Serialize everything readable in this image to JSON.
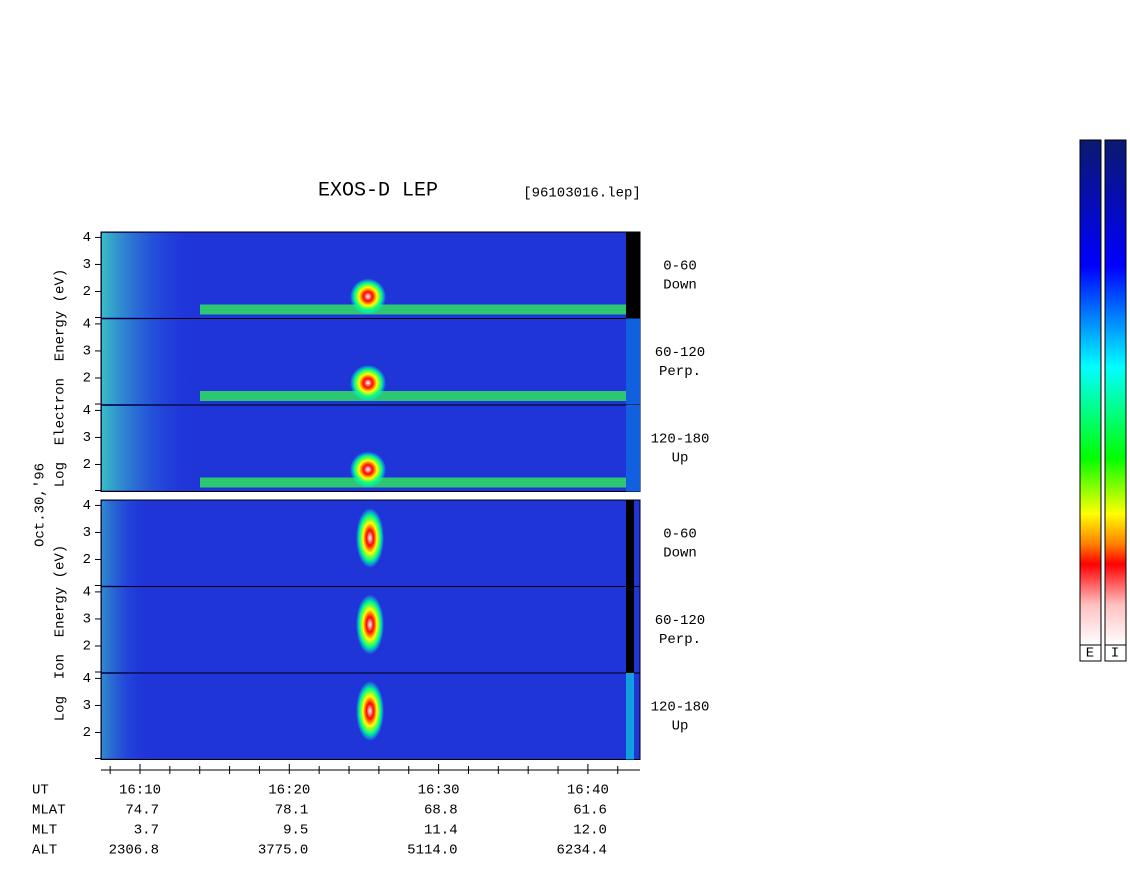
{
  "title": "EXOS-D LEP",
  "file": "[96103016.lep]",
  "date": "Oct.30,'96",
  "groups": [
    {
      "ylabel": "Log  Electron  Energy (eV)",
      "panels": [
        {
          "yticks": [
            2,
            3,
            4
          ],
          "ylim": [
            1,
            4.2
          ],
          "pitch": "0-60",
          "direction": "Down"
        },
        {
          "yticks": [
            2,
            3,
            4
          ],
          "ylim": [
            1,
            4.2
          ],
          "pitch": "60-120",
          "direction": "Perp."
        },
        {
          "yticks": [
            2,
            3,
            4
          ],
          "ylim": [
            1,
            4.2
          ],
          "pitch": "120-180",
          "direction": "Up"
        }
      ]
    },
    {
      "ylabel": "Log  Ion  Energy (eV)",
      "panels": [
        {
          "yticks": [
            2,
            3,
            4
          ],
          "ylim": [
            1,
            4.2
          ],
          "pitch": "0-60",
          "direction": "Down"
        },
        {
          "yticks": [
            2,
            3,
            4
          ],
          "ylim": [
            1,
            4.2
          ],
          "pitch": "60-120",
          "direction": "Perp."
        },
        {
          "yticks": [
            2,
            3,
            4
          ],
          "ylim": [
            1,
            4.2
          ],
          "pitch": "120-180",
          "direction": "Up"
        }
      ]
    }
  ],
  "orbit_table": {
    "rows": [
      {
        "label": "UT",
        "values": [
          "16:10",
          "16:20",
          "16:30",
          "16:40"
        ]
      },
      {
        "label": "MLAT",
        "values": [
          "74.7",
          "78.1",
          "68.8",
          "61.6"
        ]
      },
      {
        "label": "MLT",
        "values": [
          "3.7",
          "9.5",
          "11.4",
          "12.0"
        ]
      },
      {
        "label": "ALT",
        "values": [
          "2306.8",
          "3775.0",
          "5114.0",
          "6234.4"
        ]
      }
    ]
  },
  "colorbar": {
    "labels": [
      "E",
      "I"
    ]
  }
}
